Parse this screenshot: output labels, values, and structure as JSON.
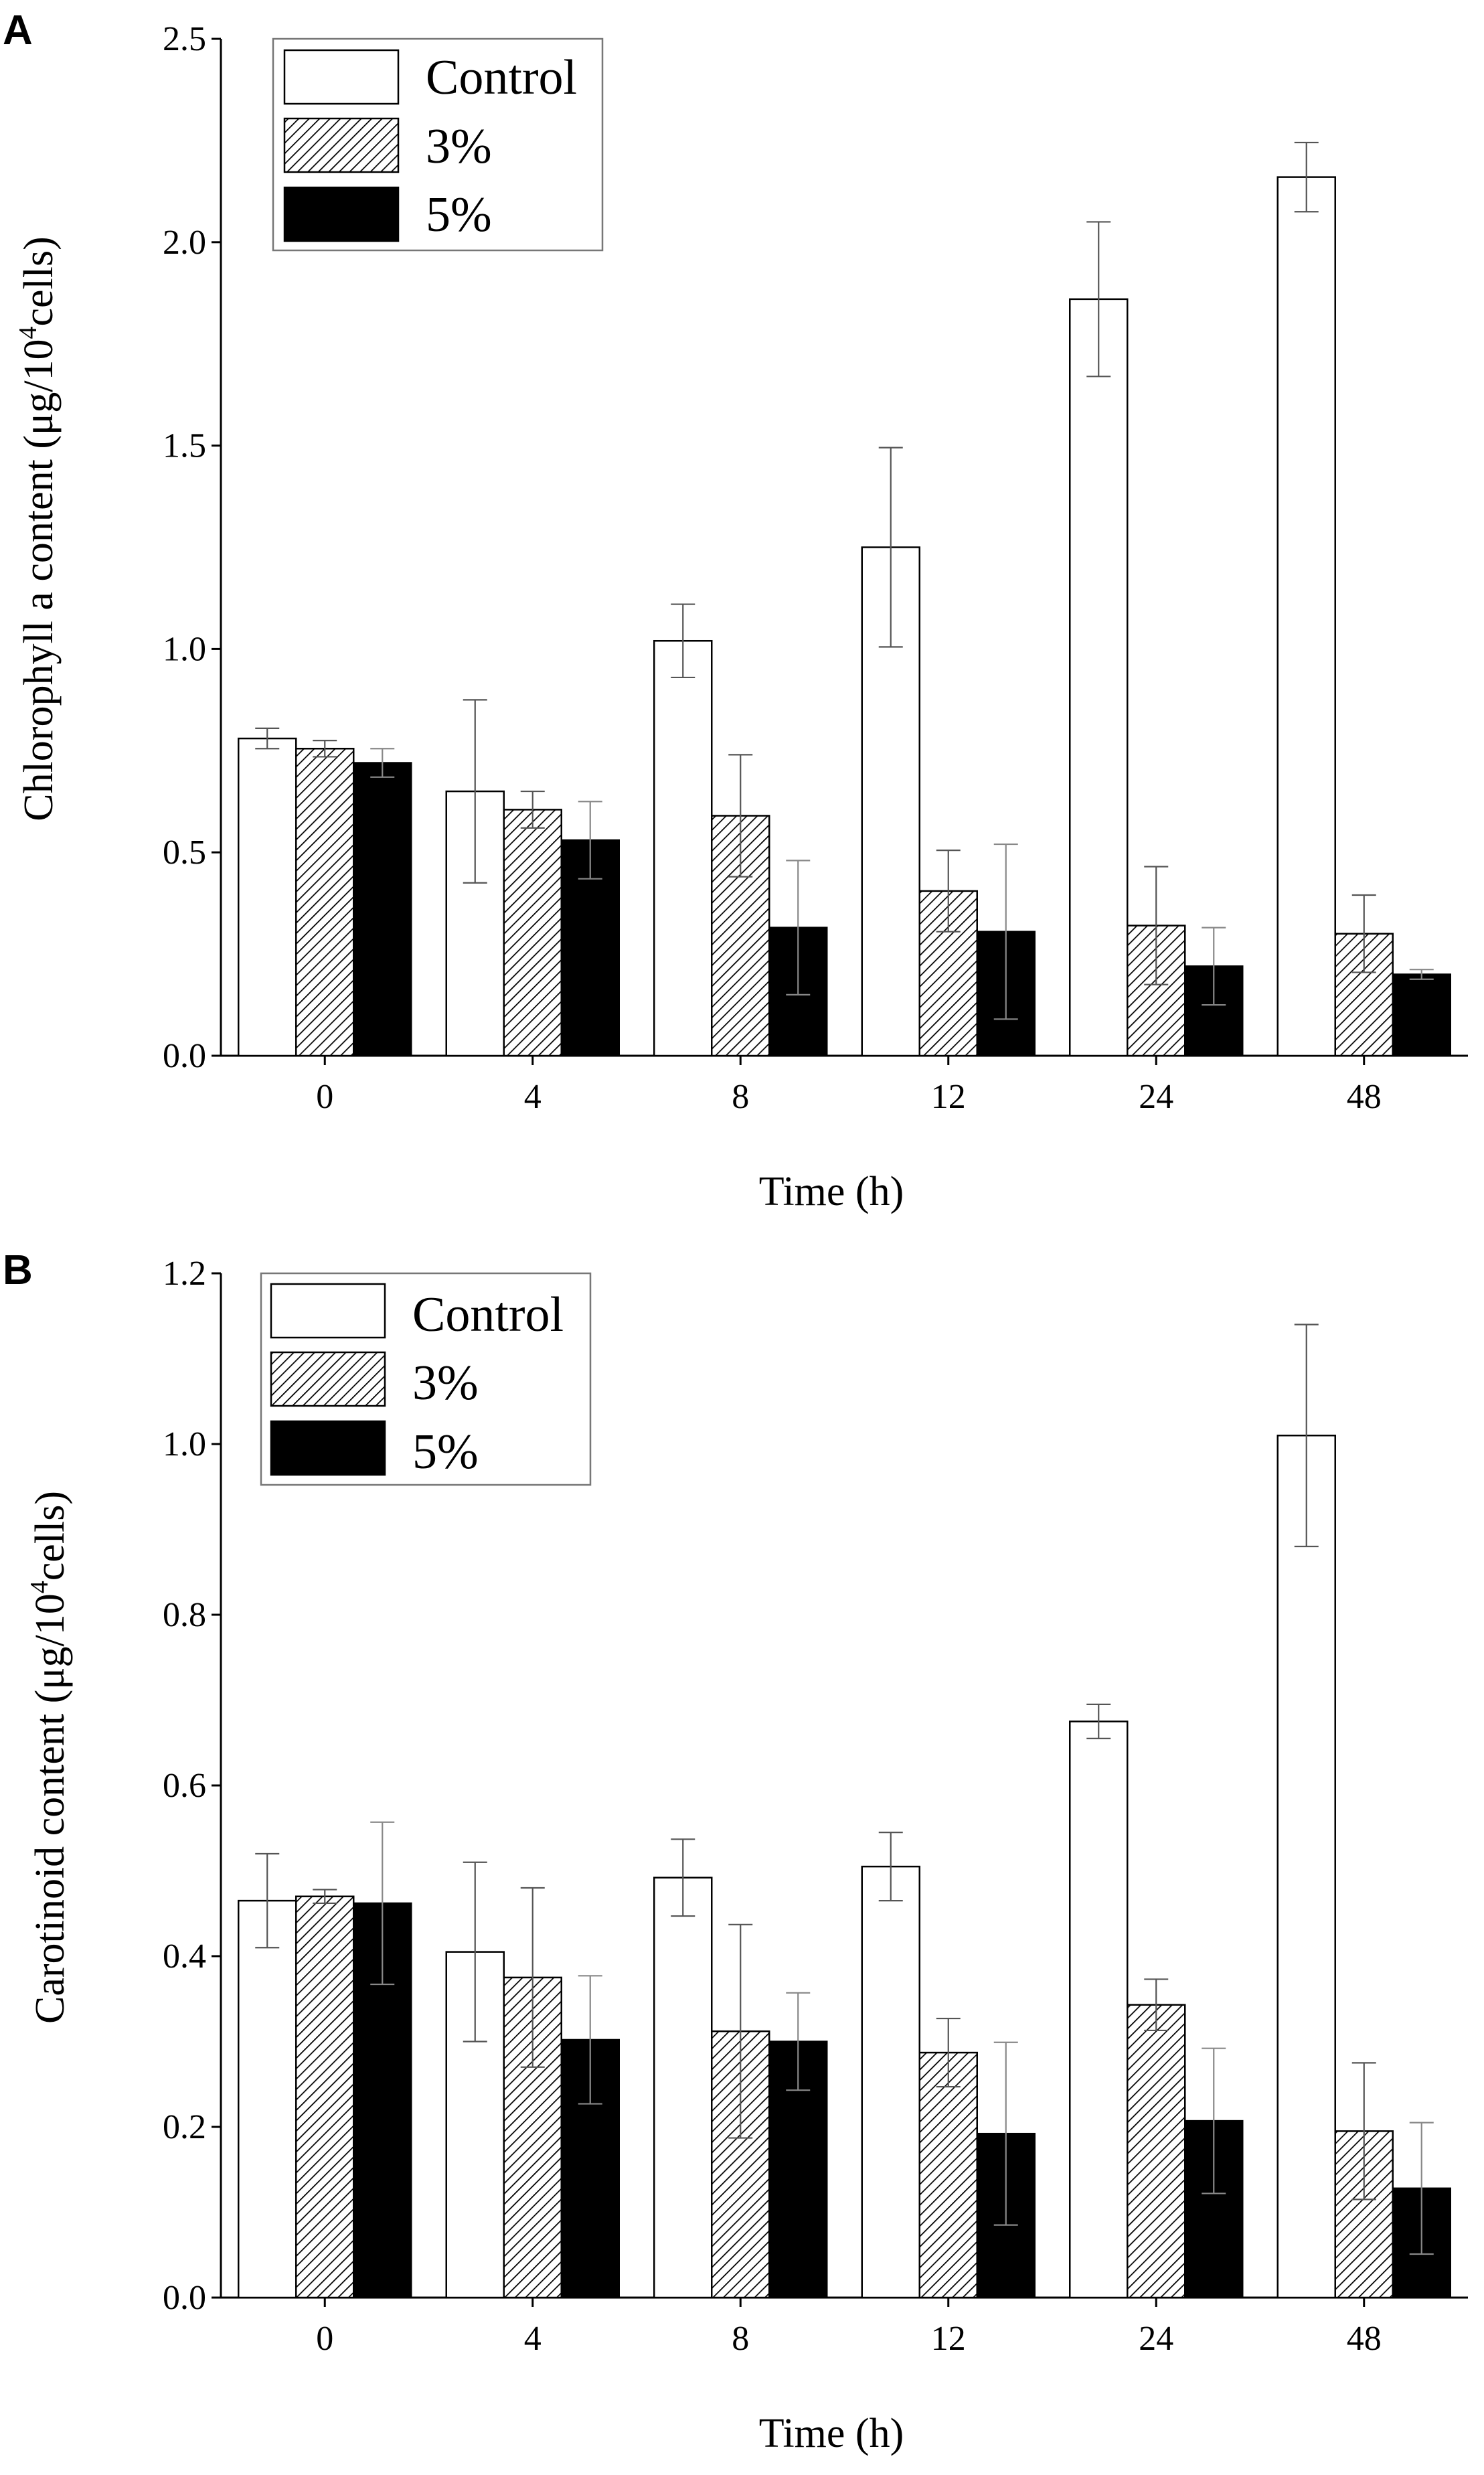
{
  "colors": {
    "control": "#ffffff",
    "pct3_hatch": "#000000",
    "pct5": "#000000",
    "axis": "#000000",
    "error": "#555555"
  },
  "chart_data": [
    {
      "type": "bar",
      "panel_label": "A",
      "categories": [
        "0",
        "4",
        "8",
        "12",
        "24",
        "48"
      ],
      "xlabel": "Time (h)",
      "ylabel_prefix": "Chlorophyll a content (μg/10",
      "ylabel_sup": "4",
      "ylabel_suffix": "cells)",
      "ylim": [
        0,
        2.5
      ],
      "yticks": [
        "0.0",
        "0.5",
        "1.0",
        "1.5",
        "2.0",
        "2.5"
      ],
      "grid": false,
      "legend_position": "top-left",
      "series": [
        {
          "name": "Control",
          "fill": "white",
          "values": [
            0.78,
            0.65,
            1.02,
            1.25,
            1.86,
            2.16
          ],
          "errors": [
            0.025,
            0.225,
            0.09,
            0.245,
            0.19,
            0.085
          ]
        },
        {
          "name": "3%",
          "fill": "hatch",
          "values": [
            0.755,
            0.605,
            0.59,
            0.405,
            0.32,
            0.3
          ],
          "errors": [
            0.02,
            0.045,
            0.15,
            0.1,
            0.145,
            0.095
          ]
        },
        {
          "name": "5%",
          "fill": "black",
          "values": [
            0.72,
            0.53,
            0.315,
            0.305,
            0.22,
            0.2
          ],
          "errors": [
            0.035,
            0.095,
            0.165,
            0.215,
            0.095,
            0.012
          ]
        }
      ]
    },
    {
      "type": "bar",
      "panel_label": "B",
      "categories": [
        "0",
        "4",
        "8",
        "12",
        "24",
        "48"
      ],
      "xlabel": "Time (h)",
      "ylabel_prefix": "Carotinoid content (μg/10",
      "ylabel_sup": "4",
      "ylabel_suffix": "cells)",
      "ylim": [
        0,
        1.2
      ],
      "yticks": [
        "0.0",
        "0.2",
        "0.4",
        "0.6",
        "0.8",
        "1.0",
        "1.2"
      ],
      "grid": false,
      "legend_position": "top-left",
      "series": [
        {
          "name": "Control",
          "fill": "white",
          "values": [
            0.465,
            0.405,
            0.492,
            0.505,
            0.675,
            1.01
          ],
          "errors": [
            0.055,
            0.105,
            0.045,
            0.04,
            0.02,
            0.13
          ]
        },
        {
          "name": "3%",
          "fill": "hatch",
          "values": [
            0.47,
            0.375,
            0.312,
            0.287,
            0.343,
            0.195
          ],
          "errors": [
            0.008,
            0.105,
            0.125,
            0.04,
            0.03,
            0.08
          ]
        },
        {
          "name": "5%",
          "fill": "black",
          "values": [
            0.462,
            0.302,
            0.3,
            0.192,
            0.207,
            0.128
          ],
          "errors": [
            0.095,
            0.075,
            0.057,
            0.107,
            0.085,
            0.077
          ]
        }
      ]
    }
  ]
}
